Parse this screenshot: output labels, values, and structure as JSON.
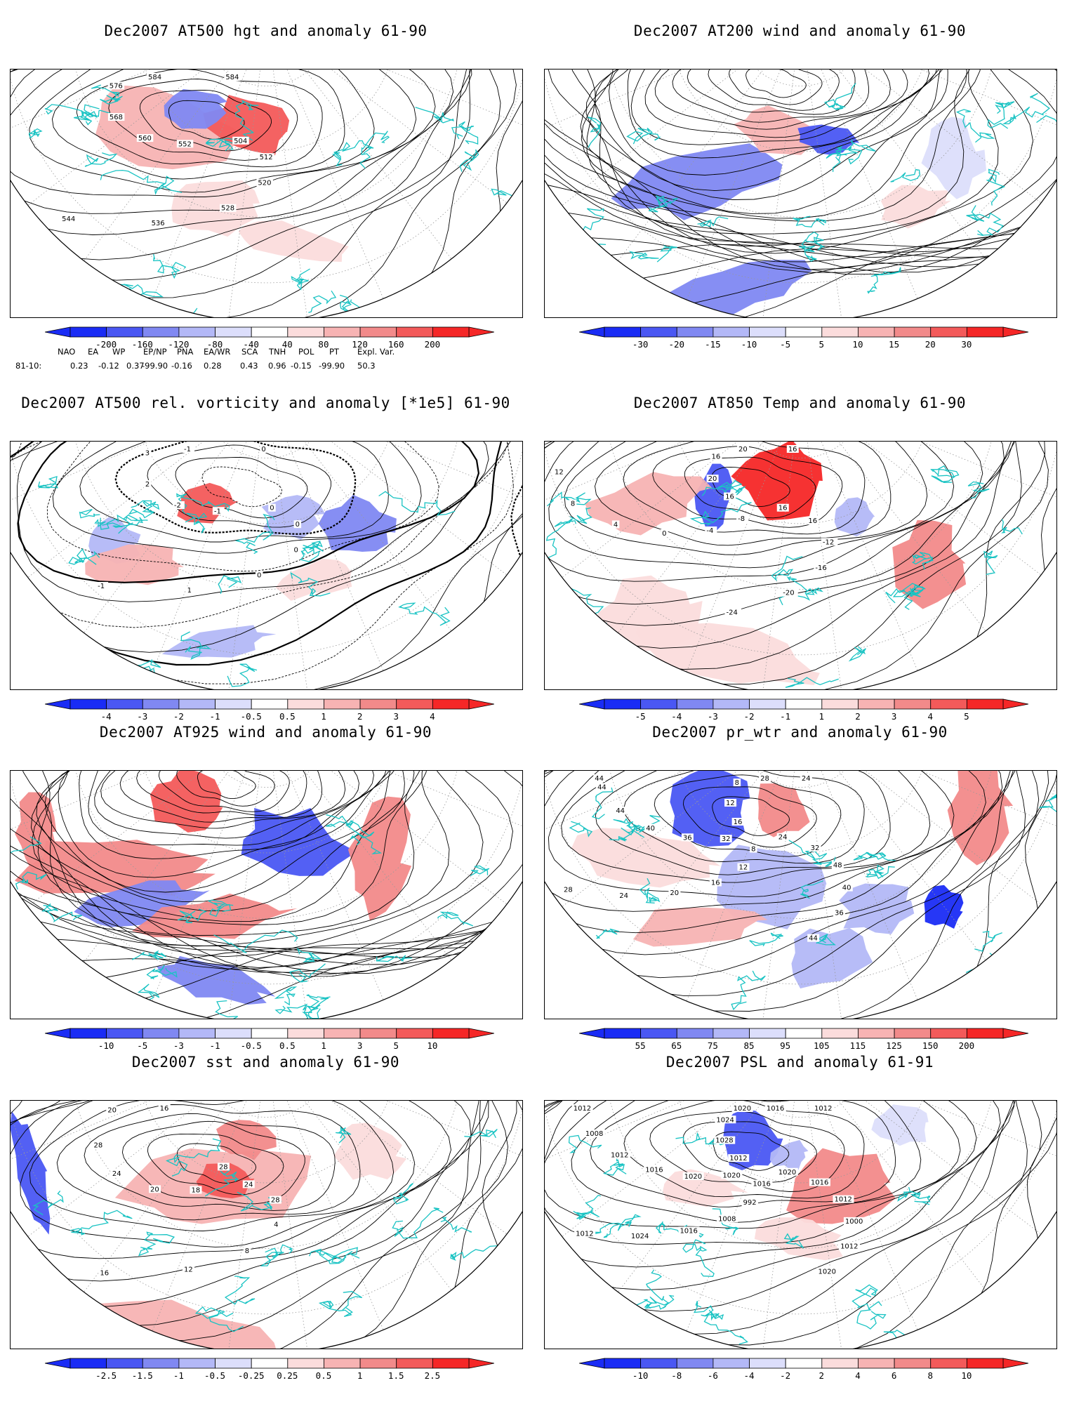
{
  "colors": {
    "neg": [
      "#1a2cf5",
      "#4a57f3",
      "#8088f2",
      "#b3b8f7",
      "#dcdefb"
    ],
    "pos": [
      "#fbdcdc",
      "#f7b3b3",
      "#f28a8a",
      "#f35a5a",
      "#f52727"
    ],
    "coast": "#19c3c3",
    "contour": "#000000"
  },
  "panels": [
    {
      "id": "hgt500",
      "title": "Dec2007 AT500 hgt and anomaly 61-90",
      "ticks": [
        "-200",
        "-160",
        "-120",
        "-80",
        "-40",
        "40",
        "80",
        "120",
        "160",
        "200"
      ],
      "contour_labels": [
        "504",
        "512",
        "520",
        "528",
        "536",
        "544",
        "552",
        "560",
        "568",
        "576",
        "584",
        "584"
      ]
    },
    {
      "id": "wind200",
      "title": "Dec2007 AT200 wind and anomaly 61-90",
      "ticks": [
        "-30",
        "-20",
        "-15",
        "-10",
        "-5",
        "5",
        "10",
        "15",
        "20",
        "30"
      ],
      "contour_labels": []
    },
    {
      "id": "vort500",
      "title": "Dec2007 AT500 rel. vorticity and anomaly [*1e5] 61-90",
      "ticks": [
        "-4",
        "-3",
        "-2",
        "-1",
        "-0.5",
        "0.5",
        "1",
        "2",
        "3",
        "4"
      ],
      "contour_labels": [
        "0",
        "0",
        "0",
        "0",
        "1",
        "-1",
        "-1",
        "-2",
        "2",
        "3",
        "-1",
        "0"
      ]
    },
    {
      "id": "temp850",
      "title": "Dec2007 AT850 Temp and anomaly 61-90",
      "ticks": [
        "-5",
        "-4",
        "-3",
        "-2",
        "-1",
        "1",
        "2",
        "3",
        "4",
        "5"
      ],
      "contour_labels": [
        "16",
        "16",
        "-12",
        "-16",
        "-20",
        "-24",
        "-8",
        "-4",
        "0",
        "4",
        "8",
        "12",
        "16",
        "20",
        "16",
        "20",
        "16"
      ]
    },
    {
      "id": "wind925",
      "title": "Dec2007 AT925 wind and anomaly 61-90",
      "ticks": [
        "-10",
        "-5",
        "-3",
        "-1",
        "-0.5",
        "0.5",
        "1",
        "3",
        "5",
        "10"
      ],
      "contour_labels": []
    },
    {
      "id": "prwtr",
      "title": "Dec2007 pr_wtr and anomaly 61-90",
      "ticks": [
        "55",
        "65",
        "75",
        "85",
        "95",
        "105",
        "115",
        "125",
        "150",
        "200"
      ],
      "contour_labels": [
        "24",
        "32",
        "48",
        "40",
        "36",
        "44",
        "8",
        "12",
        "16",
        "20",
        "24",
        "28",
        "32",
        "36",
        "40",
        "44",
        "44",
        "44",
        "16",
        "12",
        "8",
        "28",
        "24"
      ]
    },
    {
      "id": "sst",
      "title": "Dec2007 sst and anomaly 61-90",
      "ticks": [
        "-2.5",
        "-1.5",
        "-1",
        "-0.5",
        "-0.25",
        "0.25",
        "0.5",
        "1",
        "1.5",
        "2.5"
      ],
      "contour_labels": [
        "24",
        "28",
        "4",
        "8",
        "12",
        "16",
        "18",
        "20",
        "24",
        "28",
        "20",
        "16",
        "28"
      ]
    },
    {
      "id": "psl",
      "title": "Dec2007 PSL and anomaly 61-91",
      "ticks": [
        "-10",
        "-8",
        "-6",
        "-4",
        "-2",
        "2",
        "4",
        "6",
        "8",
        "10"
      ],
      "contour_labels": [
        "1020",
        "1016",
        "1012",
        "1000",
        "1012",
        "1020",
        "1016",
        "992",
        "1008",
        "1016",
        "1024",
        "1012",
        "1020",
        "1020",
        "1016",
        "1012",
        "1008",
        "1012",
        "1012",
        "1028",
        "1024",
        "1020",
        "1016",
        "1012"
      ]
    }
  ],
  "indices": {
    "headers": [
      "NAO",
      "EA",
      "WP",
      "EP/NP",
      "PNA",
      "EA/WR",
      "SCA",
      "TNH",
      "POL",
      "PT",
      "Expl. Var."
    ],
    "row_label": "81-10:",
    "values": [
      "0.23",
      "-0.12",
      "0.37",
      "-99.90",
      "-0.16",
      "0.28",
      "0.43",
      "0.96",
      "-0.15",
      "-99.90",
      "50.3"
    ]
  }
}
